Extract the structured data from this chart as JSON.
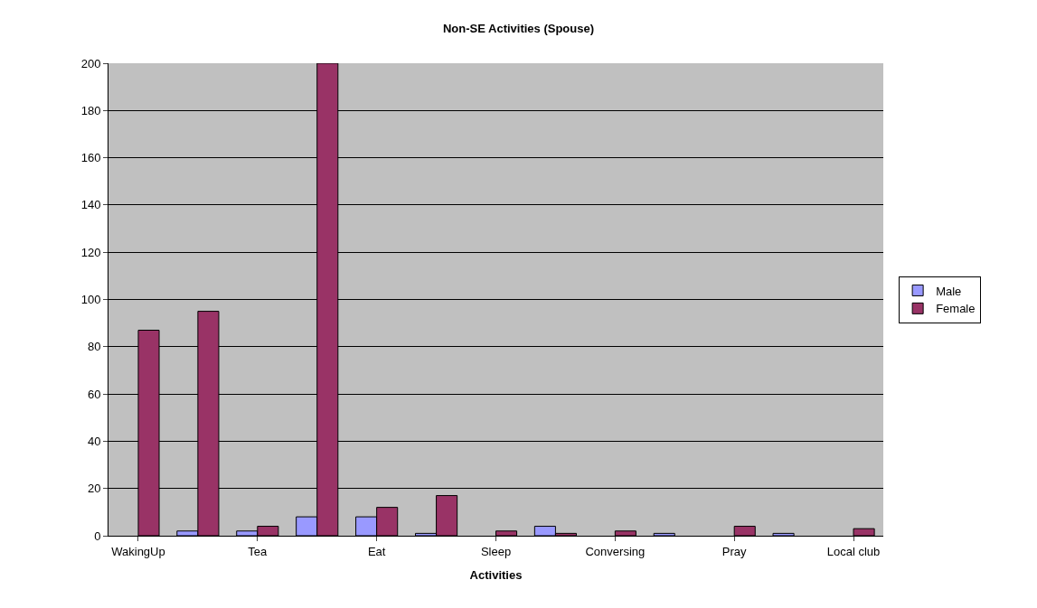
{
  "chart_data": {
    "type": "bar",
    "title": "Non-SE Activities (Spouse)",
    "xlabel": "Activities",
    "categories": [
      "WakingUp",
      null,
      "Tea",
      null,
      "Eat",
      null,
      "Sleep",
      null,
      "Conversing",
      null,
      "Pray",
      null,
      "Local club"
    ],
    "series": [
      {
        "name": "Male",
        "color": "#9999ff",
        "values": [
          null,
          2,
          2,
          8,
          8,
          1,
          null,
          4,
          null,
          1,
          null,
          1,
          null
        ]
      },
      {
        "name": "Female",
        "color": "#993366",
        "values": [
          87,
          95,
          4,
          200,
          12,
          17,
          2,
          1,
          2,
          null,
          4,
          null,
          3
        ]
      }
    ],
    "ylim": [
      0,
      200
    ],
    "yticks": [
      0,
      20,
      40,
      60,
      80,
      100,
      120,
      140,
      160,
      180,
      200
    ],
    "grid": "y",
    "legend": "right"
  }
}
